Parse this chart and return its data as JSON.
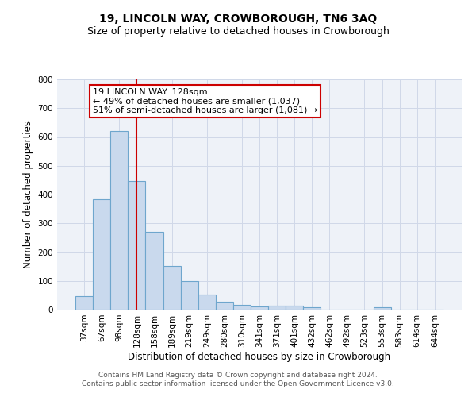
{
  "title": "19, LINCOLN WAY, CROWBOROUGH, TN6 3AQ",
  "subtitle": "Size of property relative to detached houses in Crowborough",
  "xlabel": "Distribution of detached houses by size in Crowborough",
  "ylabel": "Number of detached properties",
  "categories": [
    "37sqm",
    "67sqm",
    "98sqm",
    "128sqm",
    "158sqm",
    "189sqm",
    "219sqm",
    "249sqm",
    "280sqm",
    "310sqm",
    "341sqm",
    "371sqm",
    "401sqm",
    "432sqm",
    "462sqm",
    "492sqm",
    "523sqm",
    "553sqm",
    "583sqm",
    "614sqm",
    "644sqm"
  ],
  "values": [
    48,
    383,
    622,
    448,
    270,
    153,
    98,
    52,
    28,
    17,
    12,
    13,
    14,
    8,
    0,
    0,
    0,
    7,
    0,
    0,
    0
  ],
  "bar_color": "#c9d9ed",
  "bar_edge_color": "#6ea6cd",
  "vline_x": 3,
  "vline_color": "#cc0000",
  "annotation_line1": "19 LINCOLN WAY: 128sqm",
  "annotation_line2": "← 49% of detached houses are smaller (1,037)",
  "annotation_line3": "51% of semi-detached houses are larger (1,081) →",
  "annotation_box_color": "#cc0000",
  "ylim": [
    0,
    800
  ],
  "yticks": [
    0,
    100,
    200,
    300,
    400,
    500,
    600,
    700,
    800
  ],
  "grid_color": "#d0d8e8",
  "background_color": "#eef2f8",
  "footer": "Contains HM Land Registry data © Crown copyright and database right 2024.\nContains public sector information licensed under the Open Government Licence v3.0.",
  "title_fontsize": 10,
  "subtitle_fontsize": 9,
  "label_fontsize": 8.5,
  "tick_fontsize": 7.5,
  "footer_fontsize": 6.5,
  "annot_fontsize": 8
}
